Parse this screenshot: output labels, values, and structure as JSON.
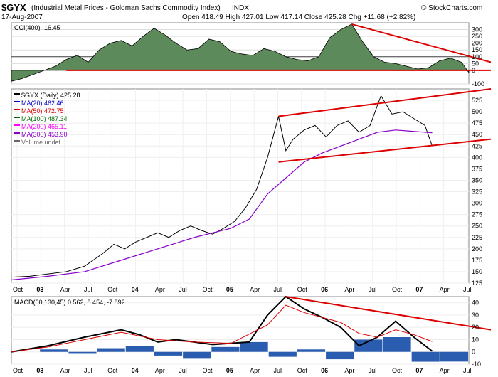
{
  "header": {
    "ticker": "$GYX",
    "description": "(Industrial Metal Prices - Goldman Sachs Commodity Index)",
    "exchange": "INDX",
    "watermark": "© StockCharts.com",
    "date": "17-Aug-2007",
    "quote": "Open 418.49  High 427.01  Low 417.14  Close 425.28  Chg +11.68 (+2.82%)",
    "chg_arrow": "▲"
  },
  "chart_data": [
    {
      "type": "area",
      "title": "CCI(400) -16.45",
      "ylim": [
        -100,
        350
      ],
      "yticks": [
        "300",
        "250",
        "200",
        "150",
        "100",
        "50",
        "0",
        "-100"
      ],
      "horizontal_line": 100,
      "annotations": [
        "trendline declining from mid-2006 peak",
        "horizontal support at 0"
      ],
      "series": [
        {
          "name": "CCI(400)",
          "points": [
            [
              0,
              -80
            ],
            [
              3,
              -60
            ],
            [
              6,
              -30
            ],
            [
              9,
              0
            ],
            [
              12,
              30
            ],
            [
              15,
              80
            ],
            [
              18,
              110
            ],
            [
              21,
              60
            ],
            [
              24,
              150
            ],
            [
              27,
              200
            ],
            [
              30,
              220
            ],
            [
              33,
              180
            ],
            [
              36,
              250
            ],
            [
              39,
              310
            ],
            [
              42,
              260
            ],
            [
              45,
              200
            ],
            [
              48,
              150
            ],
            [
              51,
              160
            ],
            [
              54,
              230
            ],
            [
              57,
              210
            ],
            [
              60,
              140
            ],
            [
              63,
              120
            ],
            [
              66,
              110
            ],
            [
              69,
              160
            ],
            [
              72,
              140
            ],
            [
              75,
              100
            ],
            [
              78,
              80
            ],
            [
              81,
              70
            ],
            [
              84,
              100
            ],
            [
              87,
              240
            ],
            [
              90,
              300
            ],
            [
              93,
              340
            ],
            [
              96,
              210
            ],
            [
              99,
              100
            ],
            [
              102,
              60
            ],
            [
              105,
              50
            ],
            [
              108,
              30
            ],
            [
              111,
              10
            ],
            [
              114,
              20
            ],
            [
              117,
              70
            ],
            [
              120,
              90
            ],
            [
              123,
              60
            ],
            [
              125,
              -16.45
            ]
          ]
        }
      ]
    },
    {
      "type": "line",
      "title": "$GYX (Daily) 425.28",
      "ylim": [
        125,
        550
      ],
      "yticks": [
        "525",
        "500",
        "475",
        "450",
        "425",
        "400",
        "375",
        "350",
        "325",
        "300",
        "275",
        "250",
        "225",
        "200",
        "175",
        "150",
        "125"
      ],
      "xlabels": [
        "Oct",
        "03",
        "Apr",
        "Jul",
        "Oct",
        "04",
        "Apr",
        "Jul",
        "Oct",
        "05",
        "Apr",
        "Jul",
        "Oct",
        "06",
        "Apr",
        "Jul",
        "Oct",
        "07",
        "Apr",
        "Jul"
      ],
      "legend": [
        {
          "label": "$GYX (Daily) 425.28",
          "color": "#000000"
        },
        {
          "label": "MA(20) 462.46",
          "color": "#0000cc"
        },
        {
          "label": "MA(50) 472.75",
          "color": "#dd0000"
        },
        {
          "label": "MA(100) 487.34",
          "color": "#006600"
        },
        {
          "label": "MA(200) 465.11",
          "color": "#ff00ff"
        },
        {
          "label": "MA(300) 453.90",
          "color": "#8800cc"
        },
        {
          "label": "Volume undef",
          "color": "#666666"
        }
      ],
      "series": [
        {
          "name": "$GYX",
          "points": [
            [
              0,
              138
            ],
            [
              5,
              140
            ],
            [
              10,
              145
            ],
            [
              15,
              150
            ],
            [
              20,
              162
            ],
            [
              25,
              190
            ],
            [
              28,
              210
            ],
            [
              31,
              200
            ],
            [
              34,
              215
            ],
            [
              37,
              225
            ],
            [
              40,
              235
            ],
            [
              43,
              225
            ],
            [
              46,
              240
            ],
            [
              49,
              250
            ],
            [
              52,
              240
            ],
            [
              55,
              232
            ],
            [
              58,
              245
            ],
            [
              61,
              260
            ],
            [
              64,
              290
            ],
            [
              67,
              330
            ],
            [
              70,
              400
            ],
            [
              73,
              490
            ],
            [
              75,
              415
            ],
            [
              77,
              440
            ],
            [
              80,
              460
            ],
            [
              83,
              470
            ],
            [
              86,
              445
            ],
            [
              89,
              470
            ],
            [
              92,
              480
            ],
            [
              95,
              455
            ],
            [
              98,
              470
            ],
            [
              101,
              535
            ],
            [
              104,
              495
            ],
            [
              107,
              500
            ],
            [
              110,
              485
            ],
            [
              113,
              470
            ],
            [
              115,
              425
            ]
          ]
        },
        {
          "name": "MA(300)",
          "points": [
            [
              0,
              132
            ],
            [
              10,
              140
            ],
            [
              20,
              150
            ],
            [
              30,
              175
            ],
            [
              40,
              200
            ],
            [
              50,
              225
            ],
            [
              60,
              245
            ],
            [
              65,
              265
            ],
            [
              70,
              320
            ],
            [
              75,
              355
            ],
            [
              80,
              390
            ],
            [
              85,
              410
            ],
            [
              90,
              425
            ],
            [
              95,
              440
            ],
            [
              100,
              455
            ],
            [
              105,
              460
            ],
            [
              110,
              457
            ],
            [
              115,
              454
            ]
          ]
        }
      ],
      "annotations": [
        "rising channel from mid-2006 to 2007"
      ]
    },
    {
      "type": "line",
      "title": "MACD(60,130,45) 0.562, 8.454, -7.892",
      "ylim": [
        -10,
        45
      ],
      "yticks": [
        "40",
        "30",
        "20",
        "10",
        "0",
        "-10"
      ],
      "series": [
        {
          "name": "MACD",
          "color": "#000000",
          "points": [
            [
              0,
              0
            ],
            [
              10,
              5
            ],
            [
              20,
              12
            ],
            [
              30,
              18
            ],
            [
              35,
              14
            ],
            [
              40,
              8
            ],
            [
              45,
              10
            ],
            [
              55,
              6
            ],
            [
              65,
              8
            ],
            [
              70,
              30
            ],
            [
              75,
              45
            ],
            [
              80,
              35
            ],
            [
              85,
              28
            ],
            [
              90,
              20
            ],
            [
              95,
              5
            ],
            [
              100,
              12
            ],
            [
              105,
              25
            ],
            [
              110,
              12
            ],
            [
              115,
              0.562
            ]
          ]
        },
        {
          "name": "Signal",
          "color": "#dd0000",
          "points": [
            [
              0,
              0
            ],
            [
              10,
              4
            ],
            [
              20,
              10
            ],
            [
              30,
              16
            ],
            [
              40,
              10
            ],
            [
              50,
              8
            ],
            [
              60,
              7
            ],
            [
              70,
              22
            ],
            [
              75,
              38
            ],
            [
              80,
              32
            ],
            [
              90,
              24
            ],
            [
              95,
              15
            ],
            [
              100,
              12
            ],
            [
              105,
              18
            ],
            [
              110,
              14
            ],
            [
              115,
              8.454
            ]
          ]
        },
        {
          "name": "Histogram",
          "color": "#2a5db0",
          "values": [
            0,
            2,
            -1,
            3,
            5,
            -3,
            -5,
            4,
            8,
            -4,
            2,
            -6,
            10,
            12,
            -8,
            -7.892
          ]
        }
      ]
    }
  ]
}
